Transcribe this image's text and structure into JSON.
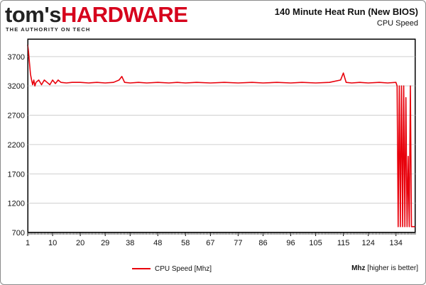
{
  "logo": {
    "part1": "tom's",
    "part2": "HARDWARE",
    "tagline": "THE AUTHORITY ON TECH"
  },
  "chart_data": {
    "type": "line",
    "title": "140 Minute Heat Run (New BIOS)",
    "subtitle": "CPU Speed",
    "ylabel_bold": "Mhz",
    "ylabel_rest": " [higher is better]",
    "xlim": [
      1,
      141
    ],
    "ylim": [
      700,
      4000
    ],
    "y_ticks": [
      700,
      1200,
      1700,
      2200,
      2700,
      3200,
      3700
    ],
    "x_tick_labels": [
      "1",
      "10",
      "20",
      "29",
      "38",
      "48",
      "58",
      "67",
      "77",
      "86",
      "96",
      "105",
      "115",
      "124",
      "134"
    ],
    "x_tick_positions": [
      1,
      10,
      20,
      29,
      38,
      48,
      58,
      67,
      77,
      86,
      96,
      105,
      115,
      124,
      134
    ],
    "grid": true,
    "legend_position": "bottom-left",
    "series": [
      {
        "name": "CPU Speed [Mhz]",
        "color": "#e8000b",
        "x": [
          1,
          1.3,
          1.6,
          2,
          2.4,
          2.8,
          3.2,
          3.6,
          4,
          5,
          6,
          7,
          8,
          9,
          10,
          11,
          12,
          13,
          15,
          17,
          20,
          23,
          26,
          29,
          32,
          34,
          35,
          36,
          38,
          41,
          44,
          48,
          52,
          55,
          58,
          62,
          67,
          72,
          77,
          82,
          86,
          91,
          96,
          100,
          105,
          110,
          114,
          115,
          116,
          118,
          121,
          124,
          128,
          131,
          134,
          134.4,
          134.8,
          135.2,
          135.6,
          136,
          136.4,
          136.8,
          137.2,
          137.6,
          138,
          138.4,
          138.8,
          139.2,
          139.6,
          140,
          140.5,
          141
        ],
        "y": [
          3900,
          3780,
          3620,
          3400,
          3300,
          3220,
          3300,
          3200,
          3260,
          3300,
          3220,
          3300,
          3260,
          3220,
          3300,
          3240,
          3300,
          3260,
          3250,
          3260,
          3260,
          3250,
          3260,
          3250,
          3260,
          3300,
          3360,
          3260,
          3250,
          3260,
          3250,
          3260,
          3250,
          3260,
          3250,
          3260,
          3250,
          3260,
          3250,
          3260,
          3250,
          3260,
          3250,
          3260,
          3250,
          3260,
          3300,
          3420,
          3260,
          3250,
          3260,
          3250,
          3260,
          3250,
          3260,
          3200,
          800,
          3200,
          800,
          3200,
          800,
          3200,
          800,
          3000,
          800,
          2000,
          800,
          3200,
          800,
          800,
          800,
          800
        ]
      }
    ]
  }
}
